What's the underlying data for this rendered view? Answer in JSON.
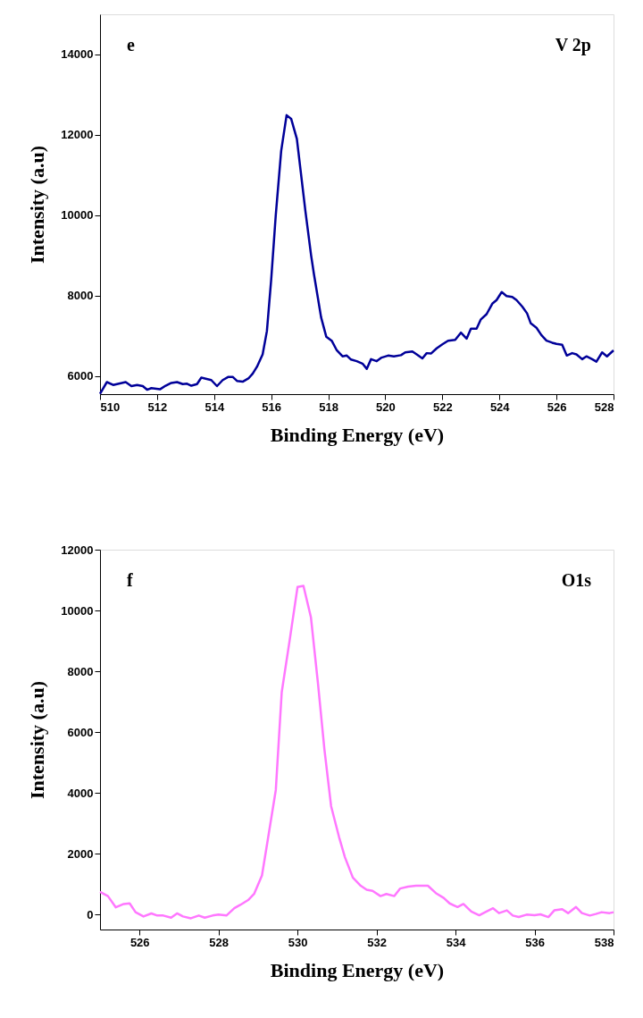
{
  "chart_data": [
    {
      "type": "line",
      "xlabel": "Binding Energy (eV)",
      "ylabel": "Intensity (a.u)",
      "annotations": [
        "e",
        "V 2p"
      ],
      "xlim": [
        510,
        528
      ],
      "xticks": [
        510,
        512,
        514,
        516,
        518,
        520,
        522,
        524,
        526,
        528
      ],
      "ylim": [
        5550,
        15000
      ],
      "yticks": [
        6000,
        8000,
        10000,
        12000,
        14000
      ],
      "grid": false,
      "series": [
        {
          "color": "#000099",
          "x": [
            510.0,
            510.24,
            510.46,
            510.9,
            511.1,
            511.3,
            511.5,
            511.65,
            511.8,
            512.1,
            512.3,
            512.5,
            512.7,
            512.9,
            513.05,
            513.2,
            513.4,
            513.55,
            513.9,
            514.1,
            514.3,
            514.5,
            514.65,
            514.8,
            515.0,
            515.2,
            515.35,
            515.5,
            515.7,
            515.85,
            516.0,
            516.16,
            516.35,
            516.54,
            516.7,
            516.9,
            517.2,
            517.4,
            517.5,
            517.75,
            517.93,
            518.12,
            518.3,
            518.5,
            518.65,
            518.8,
            519.0,
            519.2,
            519.35,
            519.5,
            519.7,
            519.87,
            520.1,
            520.3,
            520.55,
            520.7,
            520.95,
            521.1,
            521.3,
            521.45,
            521.6,
            521.8,
            522.0,
            522.2,
            522.45,
            522.65,
            522.85,
            523.0,
            523.2,
            523.35,
            523.55,
            523.75,
            523.9,
            524.08,
            524.25,
            524.45,
            524.6,
            524.8,
            524.97,
            525.1,
            525.3,
            525.47,
            525.65,
            525.85,
            526.0,
            526.2,
            526.36,
            526.55,
            526.7,
            526.9,
            527.05,
            527.25,
            527.4,
            527.6,
            527.77,
            528.0
          ],
          "values": [
            5560,
            5850,
            5780,
            5850,
            5750,
            5780,
            5750,
            5660,
            5700,
            5670,
            5760,
            5830,
            5850,
            5800,
            5810,
            5760,
            5800,
            5960,
            5900,
            5750,
            5900,
            5980,
            5980,
            5880,
            5860,
            5940,
            6060,
            6230,
            6540,
            7120,
            8400,
            10000,
            11600,
            12490,
            12400,
            11900,
            10100,
            9000,
            8530,
            7460,
            6980,
            6880,
            6640,
            6490,
            6510,
            6410,
            6370,
            6310,
            6180,
            6420,
            6370,
            6460,
            6510,
            6490,
            6520,
            6590,
            6610,
            6540,
            6440,
            6570,
            6560,
            6690,
            6790,
            6880,
            6900,
            7080,
            6930,
            7180,
            7180,
            7410,
            7540,
            7800,
            7890,
            8090,
            7990,
            7970,
            7890,
            7730,
            7560,
            7310,
            7200,
            7020,
            6880,
            6830,
            6800,
            6780,
            6510,
            6570,
            6540,
            6420,
            6490,
            6420,
            6360,
            6590,
            6490,
            6640
          ]
        }
      ]
    },
    {
      "type": "line",
      "xlabel": "Binding Energy (eV)",
      "ylabel": "Intensity (a.u)",
      "annotations": [
        "f",
        "O1s"
      ],
      "xlim": [
        525,
        538
      ],
      "xticks": [
        526,
        528,
        530,
        532,
        534,
        536,
        538
      ],
      "ylim": [
        -500,
        12000
      ],
      "yticks": [
        0,
        2000,
        4000,
        6000,
        8000,
        10000,
        12000
      ],
      "grid": false,
      "series": [
        {
          "color": "#ff77ff",
          "x": [
            525.0,
            525.2,
            525.4,
            525.6,
            525.75,
            525.9,
            526.1,
            526.3,
            526.45,
            526.6,
            526.8,
            526.95,
            527.1,
            527.3,
            527.5,
            527.65,
            527.85,
            528.0,
            528.2,
            528.4,
            528.55,
            528.75,
            528.9,
            529.1,
            529.25,
            529.45,
            529.6,
            529.8,
            530.0,
            530.15,
            530.34,
            530.52,
            530.68,
            530.85,
            531.05,
            531.2,
            531.4,
            531.6,
            531.75,
            531.9,
            532.1,
            532.25,
            532.45,
            532.6,
            532.8,
            533.0,
            533.3,
            533.5,
            533.7,
            533.85,
            534.05,
            534.2,
            534.4,
            534.6,
            534.75,
            534.95,
            535.1,
            535.3,
            535.45,
            535.6,
            535.8,
            536.0,
            536.15,
            536.35,
            536.5,
            536.7,
            536.85,
            537.05,
            537.2,
            537.4,
            537.55,
            537.7,
            537.9,
            538.0
          ],
          "values": [
            740,
            600,
            230,
            340,
            360,
            70,
            -70,
            30,
            -40,
            -40,
            -110,
            30,
            -70,
            -130,
            -40,
            -110,
            -40,
            -10,
            -40,
            200,
            310,
            470,
            670,
            1280,
            2480,
            4090,
            7310,
            9010,
            10770,
            10810,
            9770,
            7570,
            5440,
            3560,
            2550,
            1880,
            1210,
            940,
            810,
            770,
            600,
            670,
            600,
            850,
            910,
            940,
            940,
            700,
            540,
            360,
            240,
            340,
            90,
            -30,
            70,
            200,
            40,
            130,
            -40,
            -90,
            -10,
            -30,
            0,
            -90,
            130,
            170,
            40,
            240,
            40,
            -40,
            10,
            70,
            40,
            70
          ]
        }
      ]
    }
  ]
}
